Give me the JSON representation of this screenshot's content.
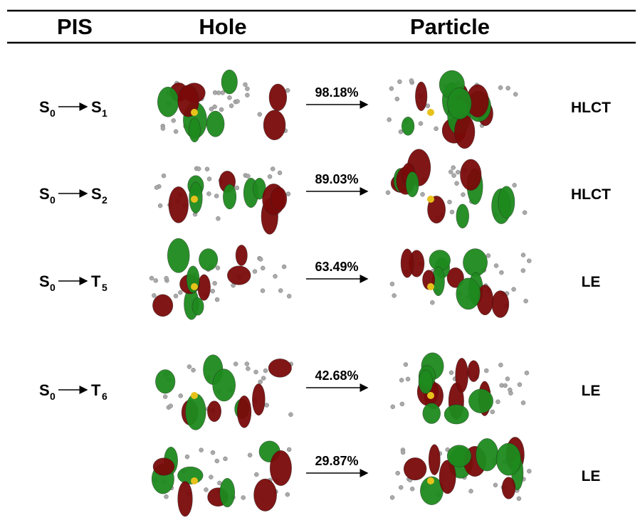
{
  "header": {
    "pis": "PIS",
    "hole": "Hole",
    "particle": "Particle"
  },
  "rows": [
    {
      "transition": {
        "from": "S",
        "from_sub": "0",
        "to": "S",
        "to_sub": "1"
      },
      "weight": "98.18%",
      "type": "HLCT"
    },
    {
      "transition": {
        "from": "S",
        "from_sub": "0",
        "to": "S",
        "to_sub": "2"
      },
      "weight": "89.03%",
      "type": "HLCT"
    },
    {
      "transition": {
        "from": "S",
        "from_sub": "0",
        "to": "T",
        "to_sub": "5"
      },
      "weight": "63.49%",
      "type": "LE"
    },
    {
      "transition": {
        "from": "S",
        "from_sub": "0",
        "to": "T",
        "to_sub": "6"
      },
      "weight": "42.68%",
      "type": "LE"
    },
    {
      "weight": "29.87%",
      "type": "LE"
    }
  ]
}
